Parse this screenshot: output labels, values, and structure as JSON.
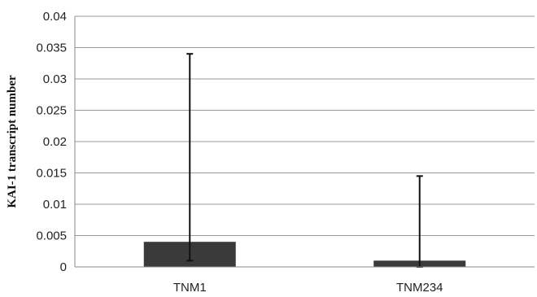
{
  "chart_data": {
    "type": "bar",
    "categories": [
      "TNM1",
      "TNM234"
    ],
    "values": [
      0.004,
      0.001
    ],
    "error_bars": [
      {
        "low": 0.001,
        "high": 0.034
      },
      {
        "low": 0.0,
        "high": 0.0145
      }
    ],
    "ylabel": "KAI-1 transcript number",
    "xlabel": "",
    "ylim": [
      0,
      0.04
    ],
    "yticks": [
      "0",
      "0.005",
      "0.01",
      "0.015",
      "0.02",
      "0.025",
      "0.03",
      "0.035",
      "0.04"
    ],
    "grid": true,
    "colors": {
      "bar": "#3a3a3a",
      "grid": "#9a9a9a",
      "error_bar": "#111111"
    }
  }
}
